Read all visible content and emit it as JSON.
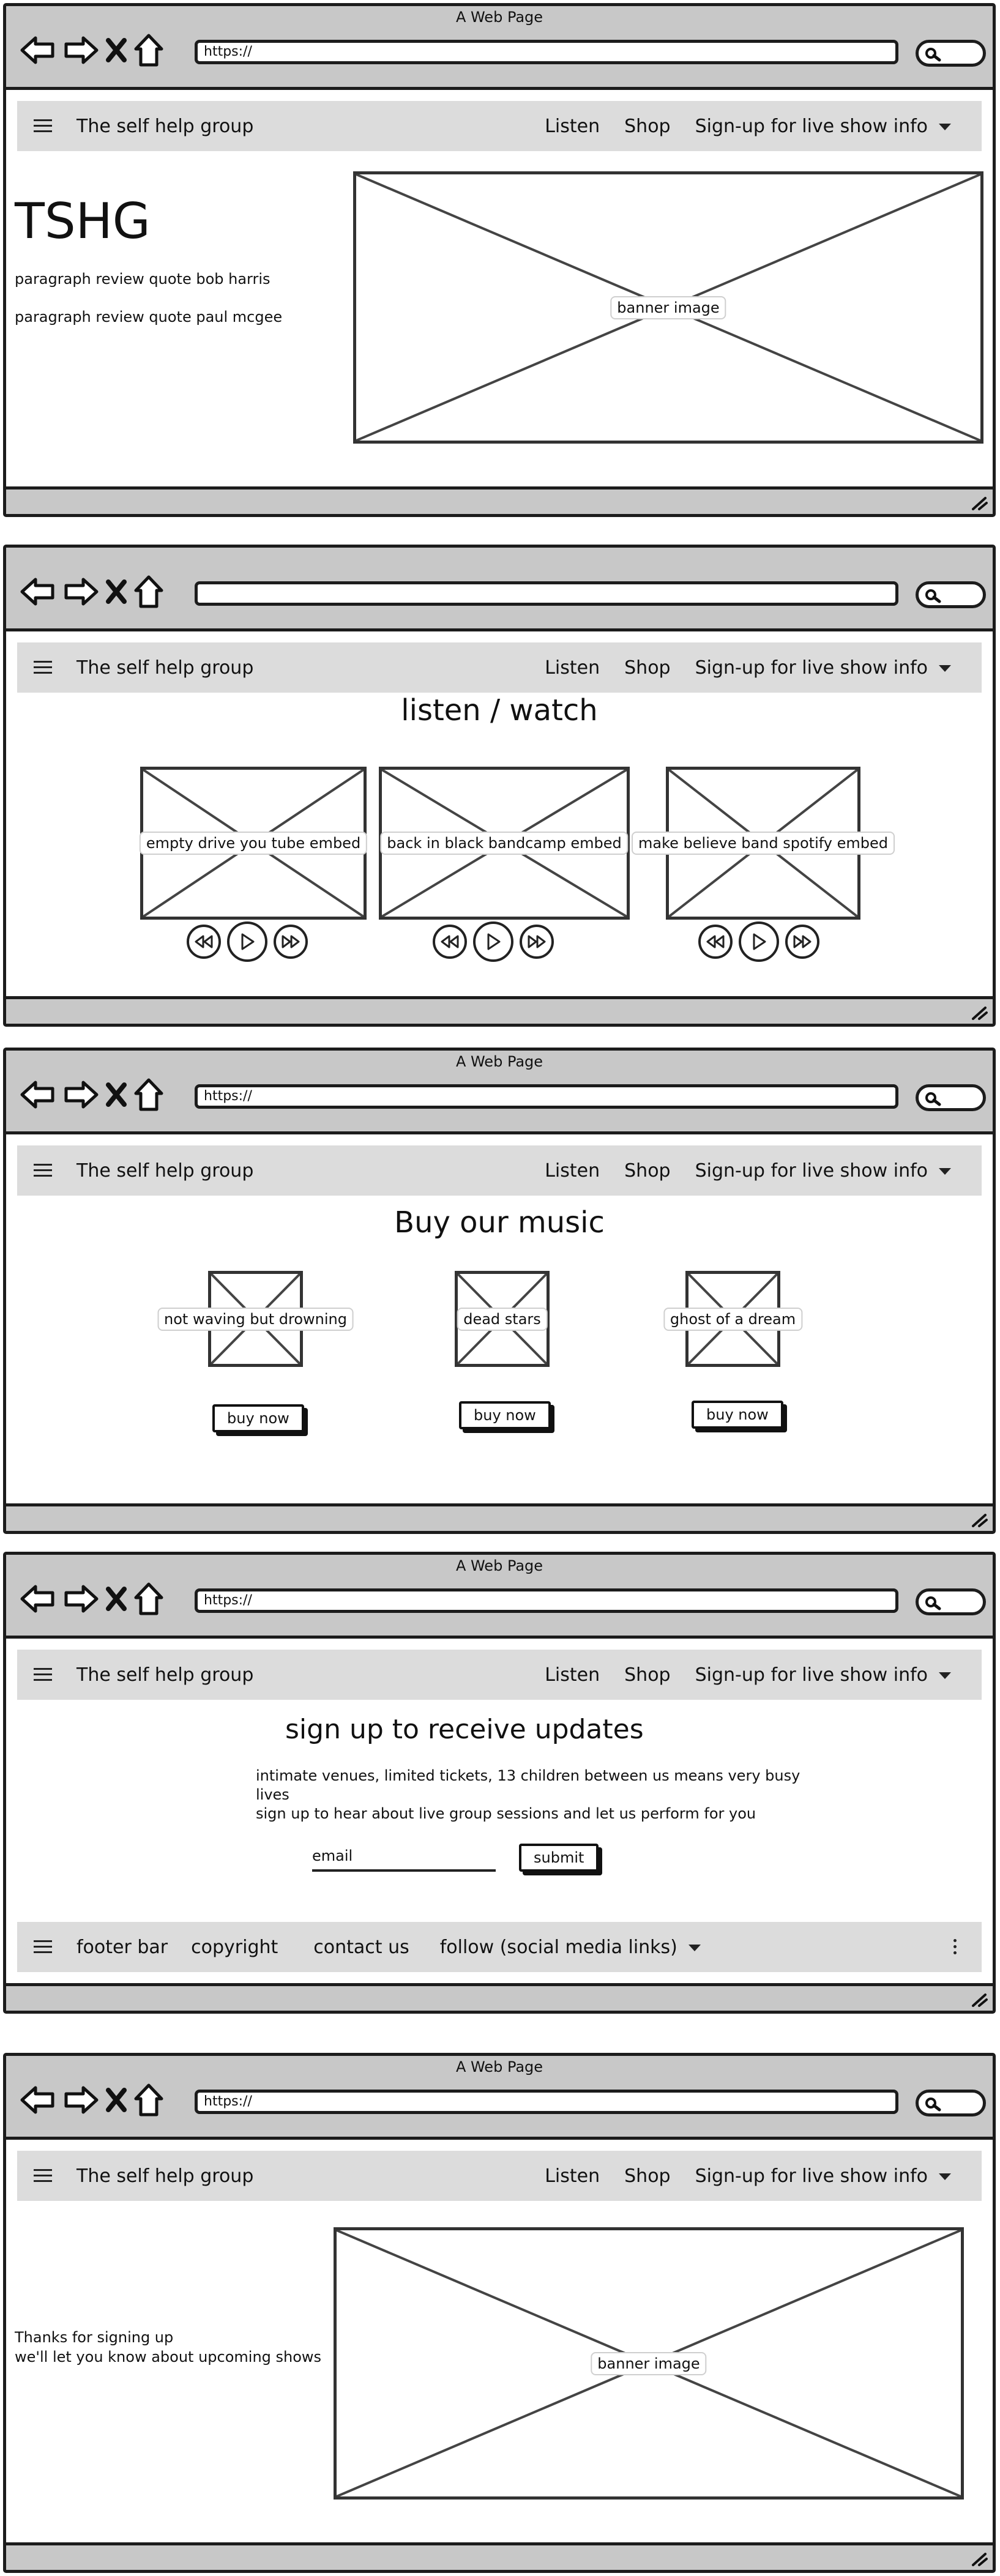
{
  "window_title": "A Web Page",
  "url": "https://",
  "nav": {
    "brand": "The self help group",
    "links": [
      "Listen",
      "Shop"
    ],
    "dropdown": "Sign-up for live show info"
  },
  "home": {
    "heading": "TSHG",
    "quote1": "paragraph review quote bob harris",
    "quote2": "paragraph review quote paul mcgee",
    "banner_label": "banner image"
  },
  "listen": {
    "heading": "listen / watch",
    "embeds": [
      "empty drive you tube embed",
      "back in black bandcamp embed",
      "make believe band spotify embed"
    ]
  },
  "shop": {
    "heading": "Buy our music",
    "products": [
      "not waving but drowning",
      "dead stars",
      "ghost of a dream"
    ],
    "buy_label": "buy now"
  },
  "signup": {
    "heading": "sign up to receive updates",
    "line1": "intimate venues, limited tickets, 13 children between us means very busy",
    "line2": "lives",
    "line3": "sign up to hear about live group sessions and let us perform for you",
    "email_value": "email",
    "submit_label": "submit",
    "footer": {
      "label": "footer bar",
      "copyright": "copyright",
      "contact": "contact us",
      "follow": "follow (social media links)"
    }
  },
  "thanks": {
    "line1": "Thanks for signing up",
    "line2": "we'll let you know about upcoming shows",
    "banner_label": "banner image"
  },
  "colors": {
    "chrome": "#c8c8c8",
    "menubar": "#dcdcdc",
    "outline": "#1c1c1c"
  }
}
